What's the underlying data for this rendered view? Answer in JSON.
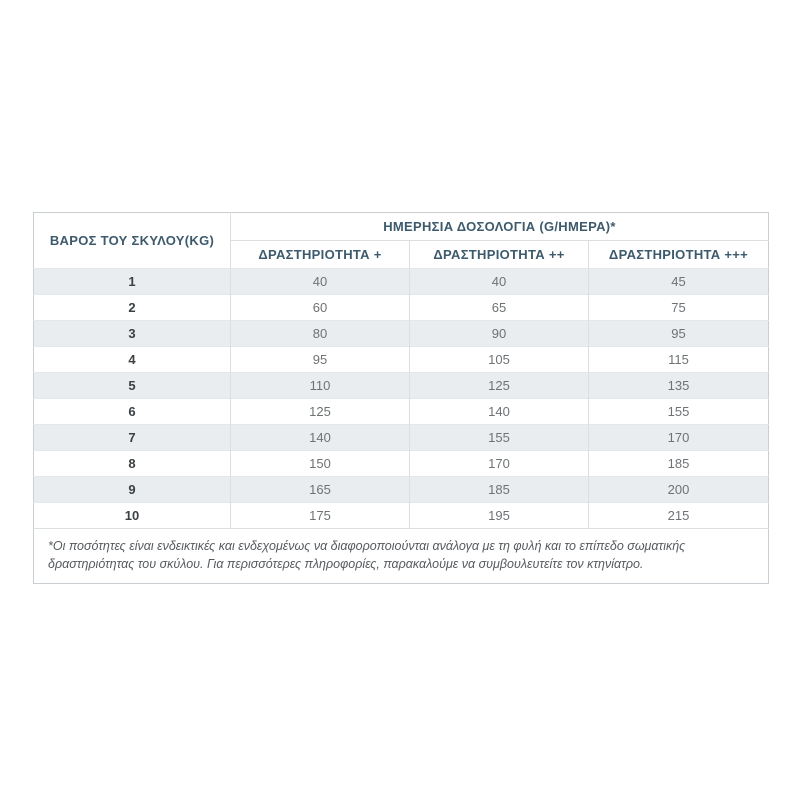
{
  "table": {
    "header": {
      "weight_label": "ΒΑΡΟΣ ΤΟΥ ΣΚΥΛΟΥ(KG)",
      "dosage_label": "ΗΜΕΡΗΣΙΑ ΔΟΣΟΛΟΓΙΑ (G/ΗΜΕΡΑ)*",
      "activity_columns": [
        "ΔΡΑΣΤΗΡΙΟΤΗΤΑ +",
        "ΔΡΑΣΤΗΡΙΟΤΗΤΑ ++",
        "ΔΡΑΣΤΗΡΙΟΤΗΤΑ +++"
      ]
    },
    "rows": [
      {
        "weight": "1",
        "activity1": "40",
        "activity2": "40",
        "activity3": "45"
      },
      {
        "weight": "2",
        "activity1": "60",
        "activity2": "65",
        "activity3": "75"
      },
      {
        "weight": "3",
        "activity1": "80",
        "activity2": "90",
        "activity3": "95"
      },
      {
        "weight": "4",
        "activity1": "95",
        "activity2": "105",
        "activity3": "115"
      },
      {
        "weight": "5",
        "activity1": "110",
        "activity2": "125",
        "activity3": "135"
      },
      {
        "weight": "6",
        "activity1": "125",
        "activity2": "140",
        "activity3": "155"
      },
      {
        "weight": "7",
        "activity1": "140",
        "activity2": "155",
        "activity3": "170"
      },
      {
        "weight": "8",
        "activity1": "150",
        "activity2": "170",
        "activity3": "185"
      },
      {
        "weight": "9",
        "activity1": "165",
        "activity2": "185",
        "activity3": "200"
      },
      {
        "weight": "10",
        "activity1": "175",
        "activity2": "195",
        "activity3": "215"
      }
    ],
    "footnote": "*Οι ποσότητες είναι ενδεικτικές και ενδεχομένως να διαφοροποιούνται ανάλογα με τη φυλή και το επίπεδο σωματικής δραστηριότητας του σκύλου. Για περισσότερες πληροφορίες, παρακαλούμε να συμβουλευτείτε τον κτηνίατρο."
  },
  "colors": {
    "header_text": "#3d5a6d",
    "stripe_row": "#e9edef",
    "outer_border": "#c8ced2",
    "inner_border": "#dcdfe1",
    "value_text": "#6e7275",
    "weight_text": "#3b4043",
    "footnote_text": "#565b5e",
    "background": "#ffffff"
  },
  "chart_data": {
    "type": "table",
    "title": "ΗΜΕΡΗΣΙΑ ΔΟΣΟΛΟΓΙΑ (G/ΗΜΕΡΑ)*",
    "columns": [
      "ΒΑΡΟΣ ΤΟΥ ΣΚΥΛΟΥ(KG)",
      "ΔΡΑΣΤΗΡΙΟΤΗΤΑ +",
      "ΔΡΑΣΤΗΡΙΟΤΗΤΑ ++",
      "ΔΡΑΣΤΗΡΙΟΤΗΤΑ +++"
    ],
    "rows": [
      [
        1,
        40,
        40,
        45
      ],
      [
        2,
        60,
        65,
        75
      ],
      [
        3,
        80,
        90,
        95
      ],
      [
        4,
        95,
        105,
        115
      ],
      [
        5,
        110,
        125,
        135
      ],
      [
        6,
        125,
        140,
        155
      ],
      [
        7,
        140,
        155,
        170
      ],
      [
        8,
        150,
        170,
        185
      ],
      [
        9,
        165,
        185,
        200
      ],
      [
        10,
        175,
        195,
        215
      ]
    ],
    "footnote": "*Οι ποσότητες είναι ενδεικτικές και ενδεχομένως να διαφοροποιούνται ανάλογα με τη φυλή και το επίπεδο σωματικής δραστηριότητας του σκύλου. Για περισσότερες πληροφορίες, παρακαλούμε να συμβουλευτείτε τον κτηνίατρο."
  }
}
